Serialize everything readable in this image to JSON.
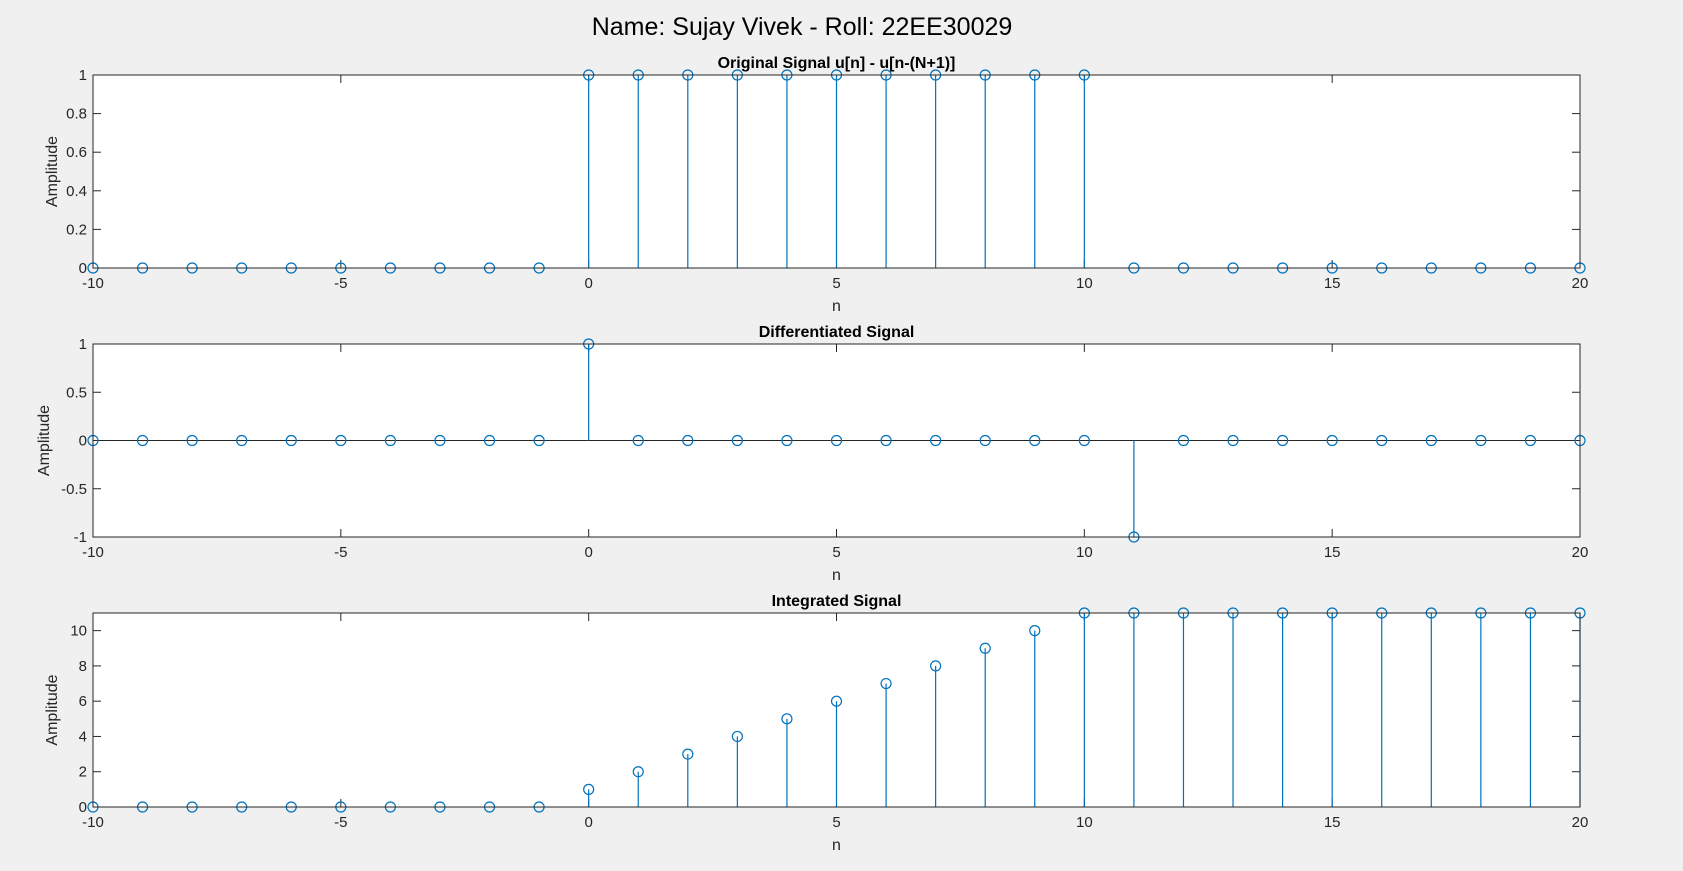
{
  "figure": {
    "super_title": "Name: Sujay Vivek - Roll: 22EE30029"
  },
  "colors": {
    "series": "#0072BD",
    "axes": "#262626",
    "plot_bg": "#ffffff",
    "figure_bg": "#f0f0f0"
  },
  "chart_data": [
    {
      "type": "stem",
      "title": "Original Signal u[n] - u[n-(N+1)]",
      "xlabel": "n",
      "ylabel": "Amplitude",
      "xlim": [
        -10,
        20
      ],
      "ylim": [
        0,
        1
      ],
      "xticks": [
        -10,
        -5,
        0,
        5,
        10,
        15,
        20
      ],
      "xtick_labels": [
        "-10",
        "-5",
        "0",
        "5",
        "10",
        "15",
        "20"
      ],
      "yticks": [
        0,
        0.2,
        0.4,
        0.6,
        0.8,
        1
      ],
      "ytick_labels": [
        "0",
        "0.2",
        "0.4",
        "0.6",
        "0.8",
        "1"
      ],
      "grid": false,
      "x": [
        -10,
        -9,
        -8,
        -7,
        -6,
        -5,
        -4,
        -3,
        -2,
        -1,
        0,
        1,
        2,
        3,
        4,
        5,
        6,
        7,
        8,
        9,
        10,
        11,
        12,
        13,
        14,
        15,
        16,
        17,
        18,
        19,
        20
      ],
      "y": [
        0,
        0,
        0,
        0,
        0,
        0,
        0,
        0,
        0,
        0,
        1,
        1,
        1,
        1,
        1,
        1,
        1,
        1,
        1,
        1,
        1,
        0,
        0,
        0,
        0,
        0,
        0,
        0,
        0,
        0,
        0
      ]
    },
    {
      "type": "stem",
      "title": "Differentiated Signal",
      "xlabel": "n",
      "ylabel": "Amplitude",
      "xlim": [
        -10,
        20
      ],
      "ylim": [
        -1,
        1
      ],
      "xticks": [
        -10,
        -5,
        0,
        5,
        10,
        15,
        20
      ],
      "xtick_labels": [
        "-10",
        "-5",
        "0",
        "5",
        "10",
        "15",
        "20"
      ],
      "yticks": [
        -1,
        -0.5,
        0,
        0.5,
        1
      ],
      "ytick_labels": [
        "-1",
        "-0.5",
        "0",
        "0.5",
        "1"
      ],
      "grid": false,
      "x": [
        -10,
        -9,
        -8,
        -7,
        -6,
        -5,
        -4,
        -3,
        -2,
        -1,
        0,
        1,
        2,
        3,
        4,
        5,
        6,
        7,
        8,
        9,
        10,
        11,
        12,
        13,
        14,
        15,
        16,
        17,
        18,
        19,
        20
      ],
      "y": [
        0,
        0,
        0,
        0,
        0,
        0,
        0,
        0,
        0,
        0,
        1,
        0,
        0,
        0,
        0,
        0,
        0,
        0,
        0,
        0,
        0,
        -1,
        0,
        0,
        0,
        0,
        0,
        0,
        0,
        0,
        0
      ]
    },
    {
      "type": "stem",
      "title": "Integrated Signal",
      "xlabel": "n",
      "ylabel": "Amplitude",
      "xlim": [
        -10,
        20
      ],
      "ylim": [
        0,
        11
      ],
      "xticks": [
        -10,
        -5,
        0,
        5,
        10,
        15,
        20
      ],
      "xtick_labels": [
        "-10",
        "-5",
        "0",
        "5",
        "10",
        "15",
        "20"
      ],
      "yticks": [
        0,
        2,
        4,
        6,
        8,
        10
      ],
      "ytick_labels": [
        "0",
        "2",
        "4",
        "6",
        "8",
        "10"
      ],
      "grid": false,
      "x": [
        -10,
        -9,
        -8,
        -7,
        -6,
        -5,
        -4,
        -3,
        -2,
        -1,
        0,
        1,
        2,
        3,
        4,
        5,
        6,
        7,
        8,
        9,
        10,
        11,
        12,
        13,
        14,
        15,
        16,
        17,
        18,
        19,
        20
      ],
      "y": [
        0,
        0,
        0,
        0,
        0,
        0,
        0,
        0,
        0,
        0,
        1,
        2,
        3,
        4,
        5,
        6,
        7,
        8,
        9,
        10,
        11,
        11,
        11,
        11,
        11,
        11,
        11,
        11,
        11,
        11,
        11
      ]
    }
  ]
}
